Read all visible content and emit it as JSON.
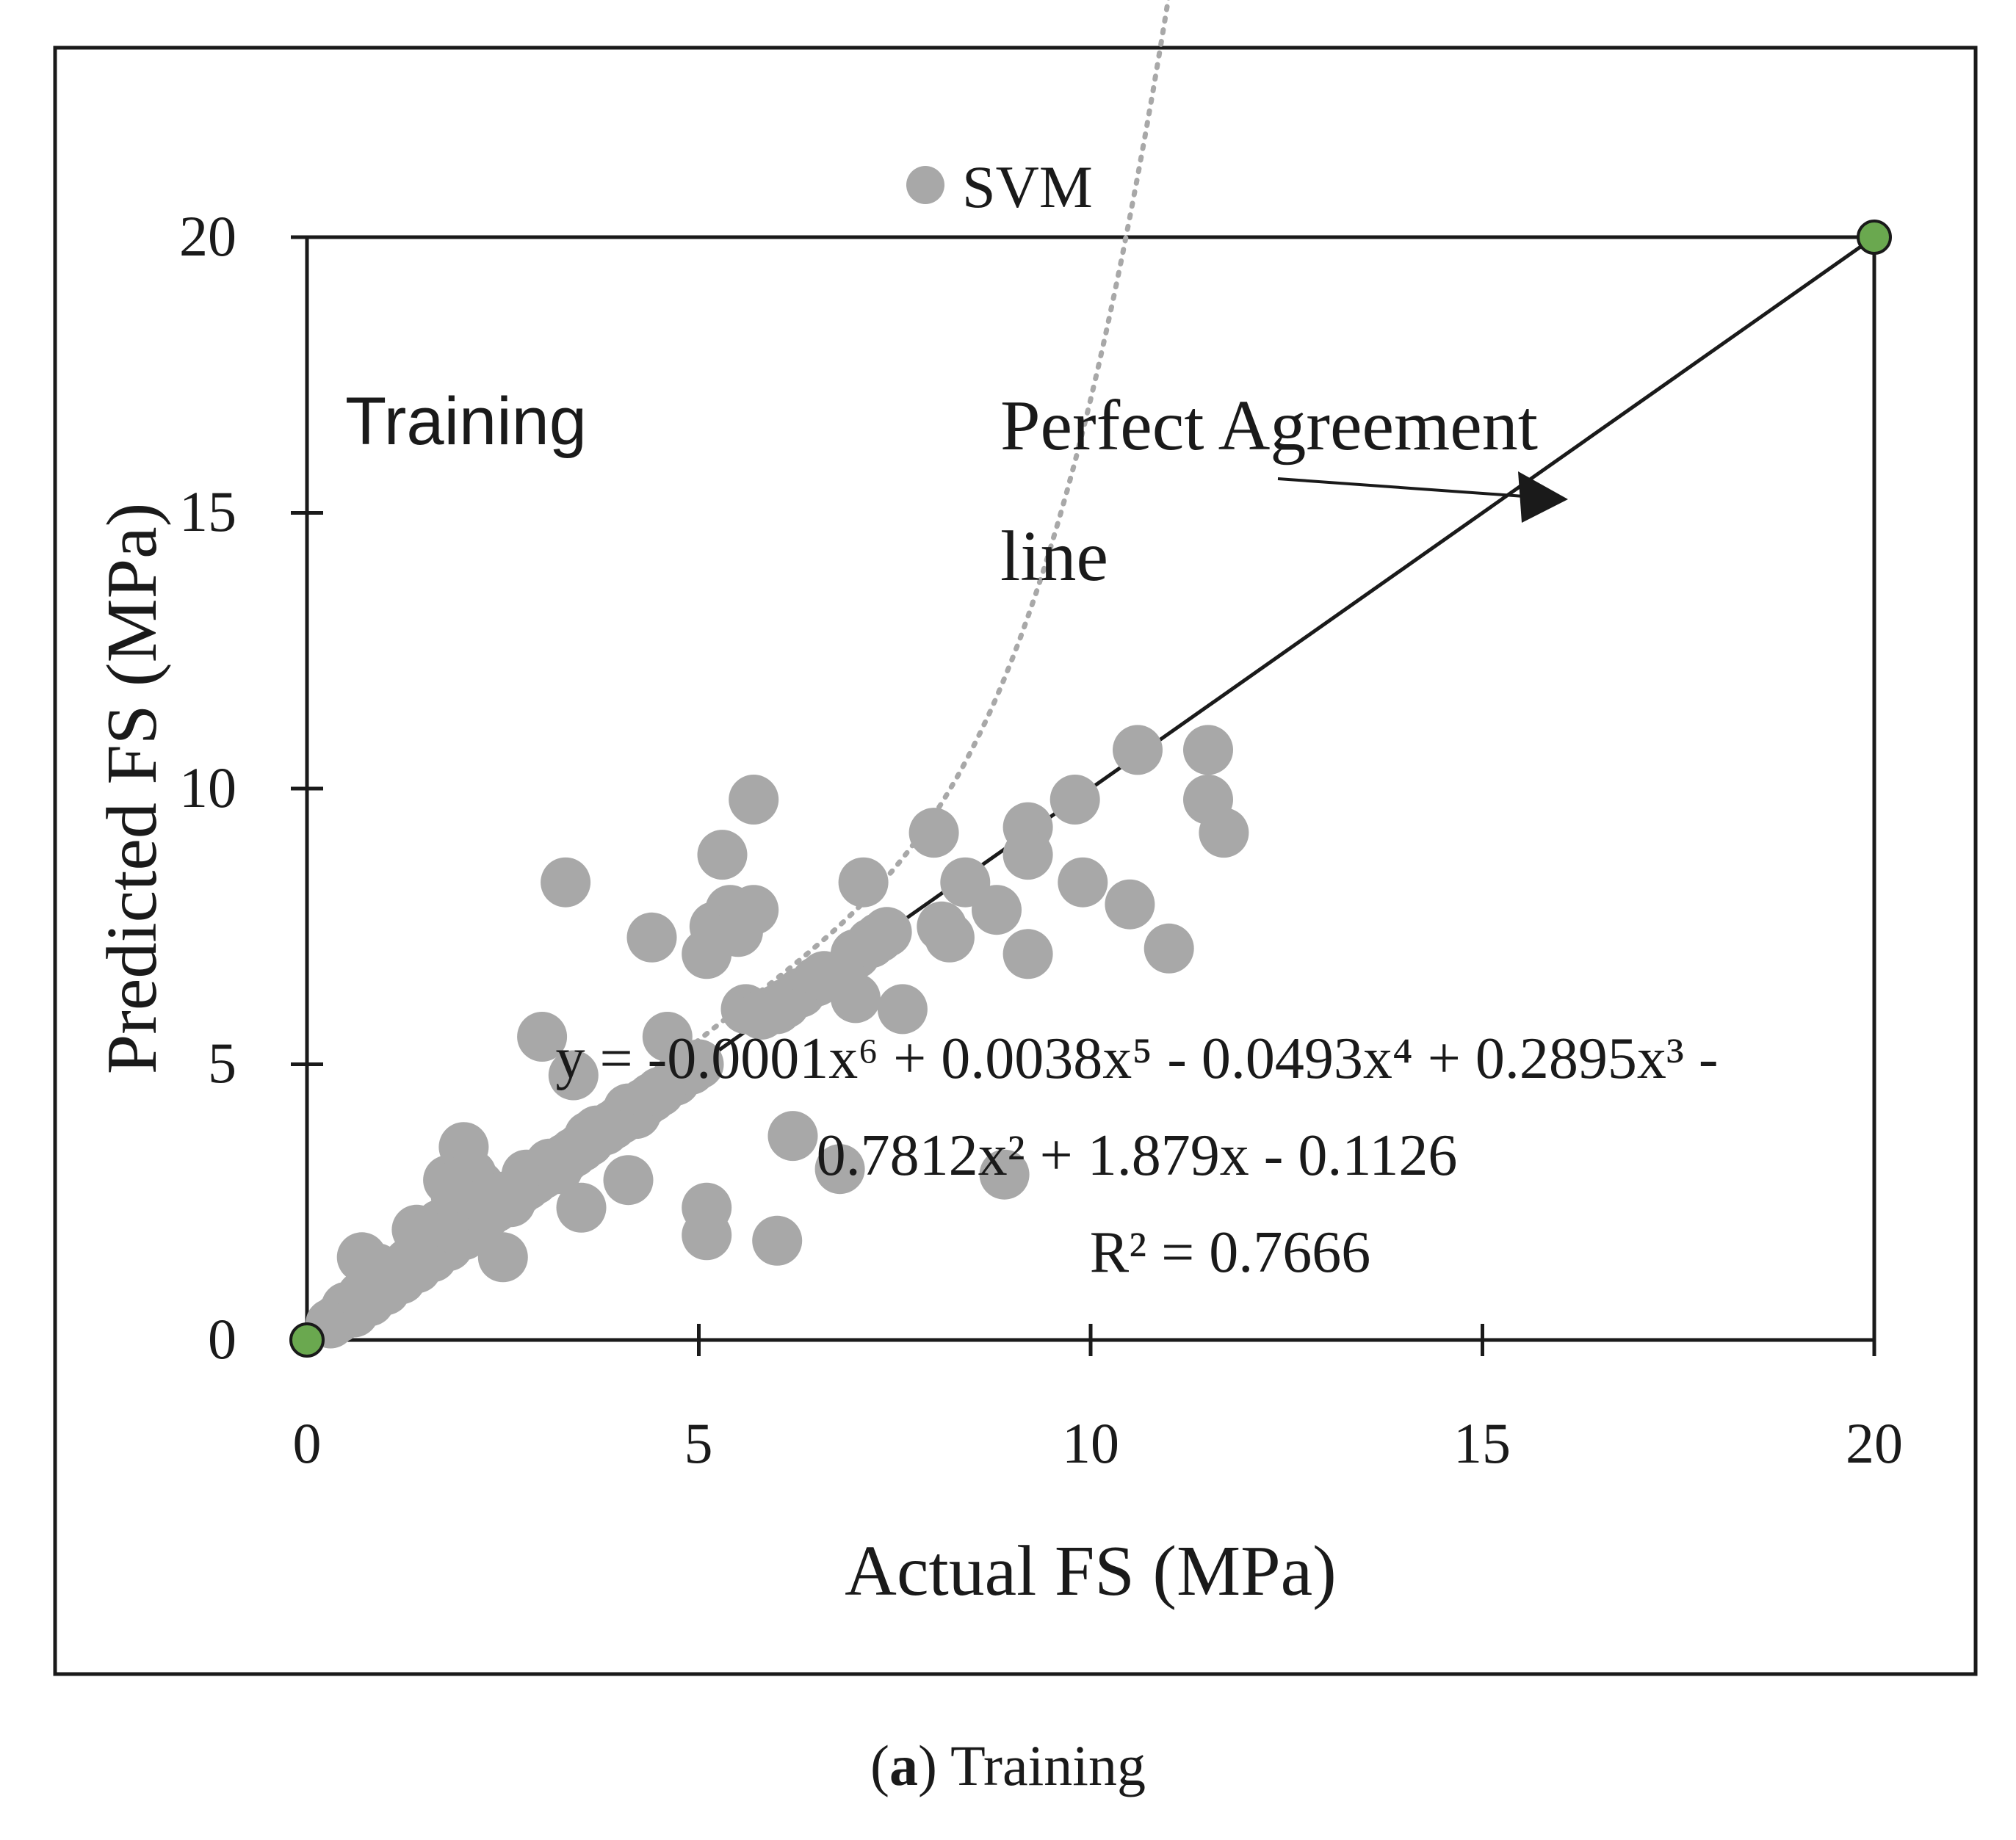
{
  "caption": {
    "label": "a",
    "text": "Training"
  },
  "chart_data": {
    "type": "scatter",
    "title": "",
    "xlabel": "Actual FS (MPa)",
    "ylabel": "Predicted FS (MPa)",
    "xlim": [
      0,
      20
    ],
    "ylim": [
      0,
      20
    ],
    "xticks": [
      "0",
      "5",
      "10",
      "15",
      "20"
    ],
    "yticks": [
      "0",
      "5",
      "10",
      "15",
      "20"
    ],
    "grid": false,
    "legend": {
      "position": "top-center",
      "entries": [
        "SVM"
      ]
    },
    "panel_label": "Training",
    "annotation": {
      "line1": "Perfect Agreement",
      "line2": "line"
    },
    "equation": {
      "line1": "y = -0.0001x⁶ + 0.0038x⁵ - 0.0493x⁴ + 0.2895x³ -",
      "line2": "0.7812x² + 1.879x - 0.1126",
      "r2": "R² = 0.7666"
    },
    "trendline": {
      "type": "polynomial",
      "order": 6,
      "coefficients": [
        -0.0001,
        0.0038,
        -0.0493,
        0.2895,
        -0.7812,
        1.879,
        -0.1126
      ],
      "x_range": [
        0.3,
        11.7
      ]
    },
    "reference_line": {
      "name": "Perfect Agreement line",
      "points": [
        [
          0,
          0
        ],
        [
          20,
          20
        ]
      ]
    },
    "series": [
      {
        "name": "SVM",
        "color": "#a8a8a8",
        "points": [
          [
            0.3,
            0.3
          ],
          [
            0.4,
            0.4
          ],
          [
            0.5,
            0.6
          ],
          [
            0.6,
            0.5
          ],
          [
            0.7,
            0.8
          ],
          [
            0.8,
            0.7
          ],
          [
            0.7,
            1.5
          ],
          [
            0.9,
            1.3
          ],
          [
            1.0,
            1.0
          ],
          [
            1.0,
            0.9
          ],
          [
            1.1,
            1.2
          ],
          [
            1.2,
            1.1
          ],
          [
            1.3,
            1.4
          ],
          [
            1.4,
            1.3
          ],
          [
            1.4,
            2.0
          ],
          [
            1.5,
            1.6
          ],
          [
            1.5,
            1.9
          ],
          [
            1.6,
            1.5
          ],
          [
            1.7,
            1.8
          ],
          [
            1.7,
            2.1
          ],
          [
            1.8,
            1.7
          ],
          [
            1.8,
            2.9
          ],
          [
            1.9,
            2.0
          ],
          [
            1.9,
            2.6
          ],
          [
            2.0,
            3.5
          ],
          [
            2.0,
            1.9
          ],
          [
            2.1,
            2.2
          ],
          [
            2.1,
            3.0
          ],
          [
            2.2,
            2.1
          ],
          [
            2.2,
            2.8
          ],
          [
            2.3,
            2.3
          ],
          [
            2.3,
            2.5
          ],
          [
            2.4,
            2.4
          ],
          [
            2.5,
            1.5
          ],
          [
            2.5,
            2.6
          ],
          [
            2.6,
            2.5
          ],
          [
            2.7,
            2.7
          ],
          [
            2.8,
            2.8
          ],
          [
            2.8,
            3.0
          ],
          [
            2.9,
            2.9
          ],
          [
            3.0,
            3.0
          ],
          [
            3.0,
            5.5
          ],
          [
            3.1,
            3.2
          ],
          [
            3.2,
            3.1
          ],
          [
            3.3,
            3.3
          ],
          [
            3.3,
            8.3
          ],
          [
            3.4,
            3.4
          ],
          [
            3.4,
            4.8
          ],
          [
            3.5,
            3.5
          ],
          [
            3.5,
            2.4
          ],
          [
            3.6,
            3.7
          ],
          [
            3.6,
            3.6
          ],
          [
            3.7,
            3.8
          ],
          [
            3.8,
            3.8
          ],
          [
            3.9,
            3.9
          ],
          [
            4.0,
            4.0
          ],
          [
            4.1,
            2.9
          ],
          [
            4.1,
            4.2
          ],
          [
            4.2,
            4.1
          ],
          [
            4.3,
            4.3
          ],
          [
            4.4,
            4.4
          ],
          [
            4.4,
            7.3
          ],
          [
            4.5,
            4.5
          ],
          [
            4.6,
            5.5
          ],
          [
            4.7,
            4.7
          ],
          [
            4.8,
            4.9
          ],
          [
            4.9,
            4.9
          ],
          [
            5.0,
            5.0
          ],
          [
            5.1,
            2.4
          ],
          [
            5.1,
            1.9
          ],
          [
            5.1,
            7.0
          ],
          [
            5.2,
            7.5
          ],
          [
            5.3,
            8.8
          ],
          [
            5.4,
            7.8
          ],
          [
            5.5,
            7.4
          ],
          [
            5.6,
            6.0
          ],
          [
            5.7,
            7.8
          ],
          [
            5.7,
            9.8
          ],
          [
            5.8,
            5.9
          ],
          [
            6.0,
            6.0
          ],
          [
            6.0,
            1.8
          ],
          [
            6.1,
            6.1
          ],
          [
            6.2,
            3.7
          ],
          [
            6.3,
            6.3
          ],
          [
            6.5,
            6.5
          ],
          [
            6.6,
            6.6
          ],
          [
            6.8,
            3.1
          ],
          [
            7.0,
            7.0
          ],
          [
            7.0,
            6.2
          ],
          [
            7.1,
            8.3
          ],
          [
            7.2,
            7.2
          ],
          [
            7.3,
            7.3
          ],
          [
            7.4,
            7.4
          ],
          [
            7.6,
            6.0
          ],
          [
            8.0,
            9.2
          ],
          [
            8.1,
            7.5
          ],
          [
            8.2,
            7.3
          ],
          [
            8.4,
            8.3
          ],
          [
            8.8,
            7.8
          ],
          [
            8.9,
            3.0
          ],
          [
            9.2,
            9.3
          ],
          [
            9.2,
            8.8
          ],
          [
            9.2,
            7.0
          ],
          [
            9.8,
            9.8
          ],
          [
            9.9,
            8.3
          ],
          [
            10.5,
            7.9
          ],
          [
            10.6,
            10.7
          ],
          [
            11.0,
            7.1
          ],
          [
            11.5,
            10.7
          ],
          [
            11.5,
            9.8
          ],
          [
            11.7,
            9.2
          ]
        ]
      }
    ],
    "endpoints": {
      "color": "#6aa84f",
      "points": [
        [
          0,
          0
        ],
        [
          20,
          20
        ]
      ]
    }
  }
}
